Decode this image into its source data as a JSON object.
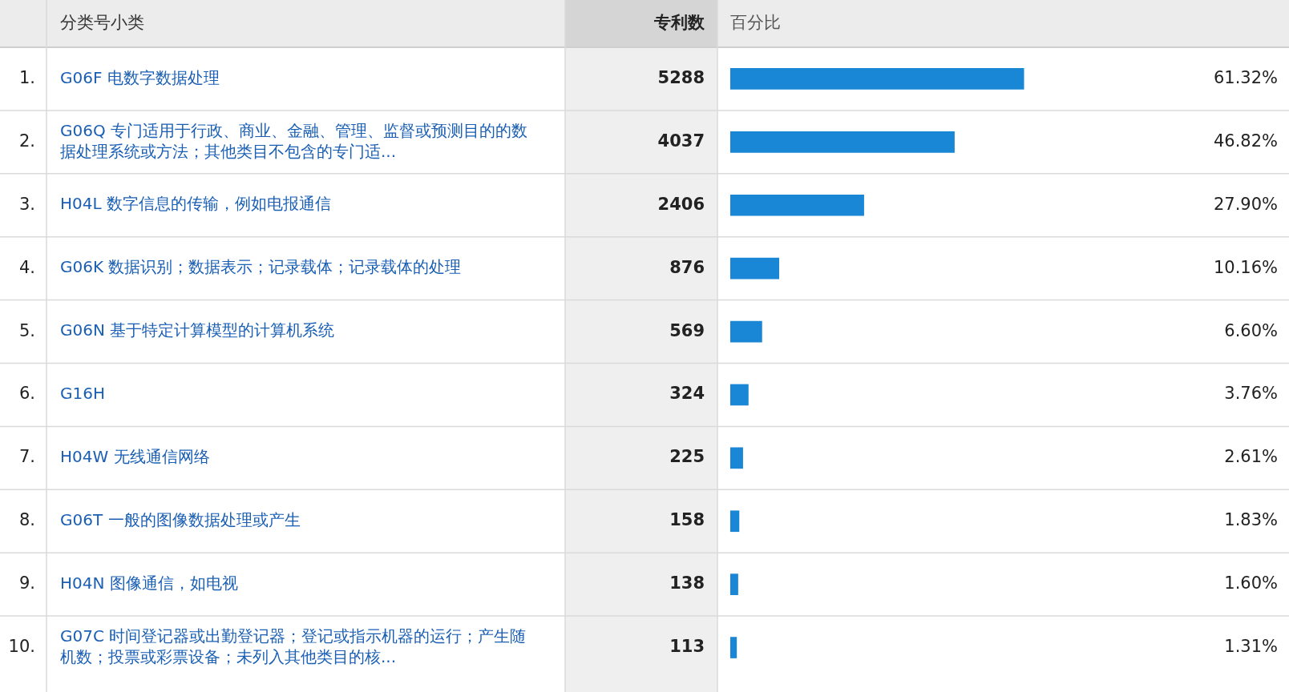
{
  "chart_data": {
    "type": "bar",
    "orientation": "horizontal",
    "ylabel": "分类号小类",
    "xlabel": "百分比",
    "categories": [
      "G06F 电数字数据处理",
      "G06Q 专门适用于行政、商业、金融、管理、监督或预测目的的数据处理系统或方法；其他类目不包含的专门适...",
      "H04L 数字信息的传输，例如电报通信",
      "G06K 数据识别；数据表示；记录载体；记录载体的处理",
      "G06N 基于特定计算模型的计算机系统",
      "G16H",
      "H04W 无线通信网络",
      "G06T 一般的图像数据处理或产生",
      "H04N 图像通信，如电视",
      "G07C 时间登记器或出勤登记器；登记或指示机器的运行；产生随机数；投票或彩票设备；未列入其他类目的核..."
    ],
    "values": [
      61.32,
      46.82,
      27.9,
      10.16,
      6.6,
      3.76,
      2.61,
      1.83,
      1.6,
      1.31
    ],
    "value_labels": [
      "61.32%",
      "46.82%",
      "27.90%",
      "10.16%",
      "6.60%",
      "3.76%",
      "2.61%",
      "1.83%",
      "1.60%",
      "1.31%"
    ],
    "color": "#1a87d6",
    "tick_labels": "y",
    "grid": "y",
    "annotations": [
      "专利数",
      "1.",
      "2.",
      "3.",
      "4.",
      "5.",
      "6.",
      "7.",
      "8.",
      "9.",
      "10.",
      "5288",
      "4037",
      "2406",
      "876",
      "569",
      "324",
      "225",
      "158",
      "138",
      "113"
    ]
  }
}
